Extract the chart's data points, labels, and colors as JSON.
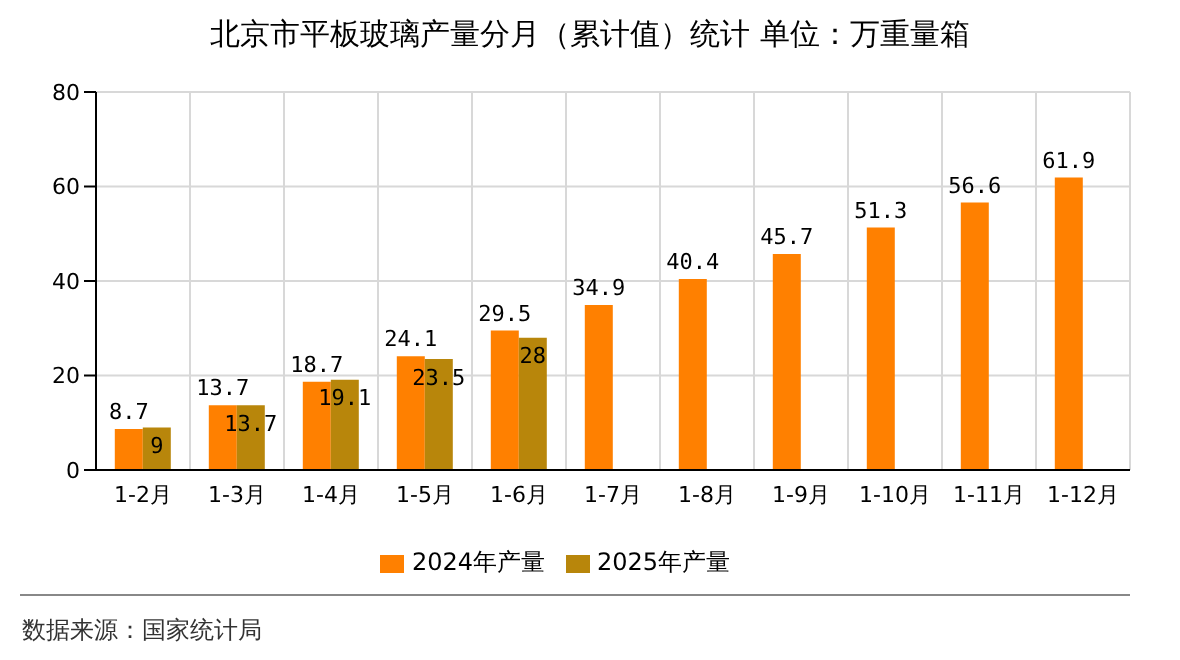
{
  "chart_data": {
    "type": "bar",
    "title": "北京市平板玻璃产量分月（累计值）统计 单位：万重量箱",
    "categories": [
      "1-2月",
      "1-3月",
      "1-4月",
      "1-5月",
      "1-6月",
      "1-7月",
      "1-8月",
      "1-9月",
      "1-10月",
      "1-11月",
      "1-12月"
    ],
    "series": [
      {
        "name": "2024年产量",
        "color": "#ff8000",
        "values": [
          8.7,
          13.7,
          18.7,
          24.1,
          29.5,
          34.9,
          40.4,
          45.7,
          51.3,
          56.6,
          61.9
        ]
      },
      {
        "name": "2025年产量",
        "color": "#b8860b",
        "values": [
          9,
          13.7,
          19.1,
          23.5,
          28,
          null,
          null,
          null,
          null,
          null,
          null
        ]
      }
    ],
    "ylim": [
      0,
      80
    ],
    "yticks": [
      0,
      20,
      40,
      60,
      80
    ],
    "grid": true,
    "legend": "bottom",
    "data_labels": true,
    "annotations": [
      "数据来源：国家统计局"
    ]
  }
}
